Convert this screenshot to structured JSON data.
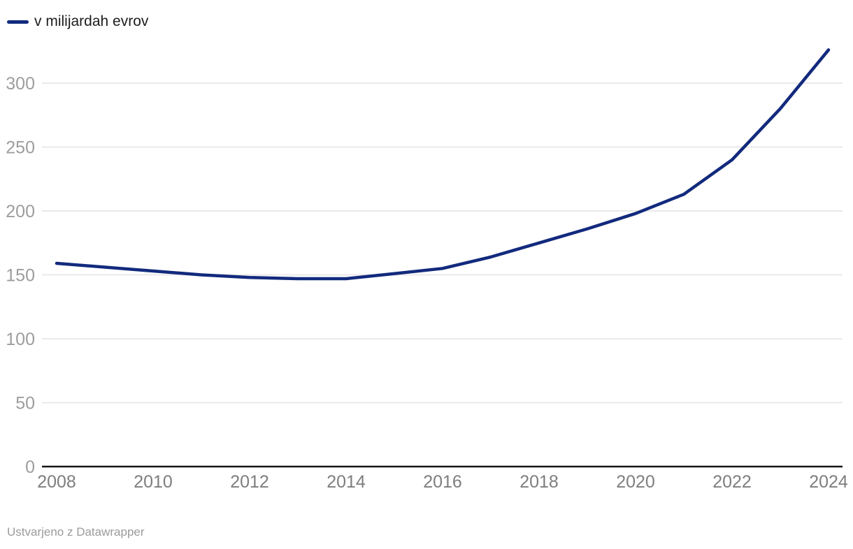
{
  "legend": {
    "label": "v milijardah evrov"
  },
  "footer": {
    "text": "Ustvarjeno z Datawrapper"
  },
  "colors": {
    "background": "#ffffff",
    "line": "#122a7d",
    "grid": "#e9e9e9",
    "axis": "#161616",
    "y_tick_label": "#9d9d9d",
    "x_tick_label": "#7e7e7e",
    "legend_text": "#1d1d1d",
    "footer_text": "#9b9b9b"
  },
  "chart_data": {
    "type": "line",
    "title": "",
    "xlabel": "",
    "ylabel": "",
    "legend_position": "top-left",
    "grid": "horizontal",
    "x": [
      2008,
      2009,
      2010,
      2011,
      2012,
      2013,
      2014,
      2015,
      2016,
      2017,
      2018,
      2019,
      2020,
      2021,
      2022,
      2023,
      2024
    ],
    "series": [
      {
        "name": "v milijardah evrov",
        "values": [
          159,
          156,
          153,
          150,
          148,
          147,
          147,
          151,
          155,
          164,
          175,
          186,
          198,
          213,
          240,
          280,
          326
        ]
      }
    ],
    "ylim": [
      0,
      330
    ],
    "yticks": [
      0,
      50,
      100,
      150,
      200,
      250,
      300
    ],
    "ytick_labels": [
      "0",
      "50",
      "100",
      "150",
      "200",
      "250",
      "300"
    ],
    "xticks": [
      2008,
      2010,
      2012,
      2014,
      2016,
      2018,
      2020,
      2022,
      2024
    ],
    "xtick_labels": [
      "2008",
      "2010",
      "2012",
      "2014",
      "2016",
      "2018",
      "2020",
      "2022",
      "2024"
    ]
  }
}
